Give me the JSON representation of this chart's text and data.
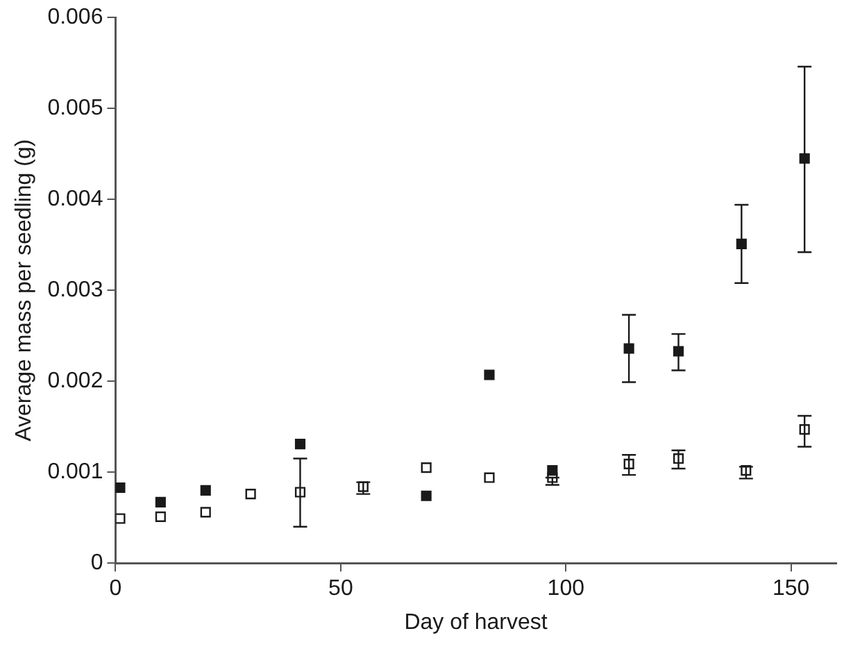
{
  "chart_data": {
    "type": "scatter",
    "xlabel": "Day of harvest",
    "ylabel": "Average mass per seedling (g)",
    "xlim": [
      0,
      160
    ],
    "xticks": [
      0,
      50,
      100,
      150
    ],
    "ylim": [
      0,
      0.006
    ],
    "yticks": [
      0,
      0.001,
      0.002,
      0.003,
      0.004,
      0.005,
      0.006
    ],
    "grid": false,
    "legend": false,
    "marker": "square",
    "series": [
      {
        "color": "#1a1a1a",
        "x": [
          1,
          10,
          20,
          41,
          69,
          83,
          97,
          114,
          125,
          139,
          153
        ],
        "values": [
          0.00083,
          0.00067,
          0.0008,
          0.00131,
          0.00074,
          0.00207,
          0.00102,
          0.00236,
          0.00233,
          0.00351,
          0.00445
        ],
        "errors": [
          null,
          null,
          null,
          null,
          null,
          null,
          null,
          [
            0.00199,
            0.00273
          ],
          [
            0.00212,
            0.00252
          ],
          [
            0.00308,
            0.00394
          ],
          [
            0.00342,
            0.00546
          ]
        ]
      },
      {
        "color": "#ffffff",
        "x": [
          1,
          10,
          20,
          30,
          41,
          55,
          69,
          83,
          97,
          114,
          125,
          140,
          153
        ],
        "values": [
          0.00049,
          0.00051,
          0.00056,
          0.00076,
          0.00078,
          0.00084,
          0.00105,
          0.00094,
          0.00094,
          0.00109,
          0.00115,
          0.00102,
          0.00147
        ],
        "errors": [
          null,
          null,
          null,
          null,
          [
            0.0004,
            0.00115
          ],
          [
            0.00076,
            0.00089
          ],
          null,
          null,
          [
            0.00086,
            0.00094
          ],
          [
            0.00097,
            0.00119
          ],
          [
            0.00104,
            0.00124
          ],
          [
            0.00093,
            0.00106
          ],
          [
            0.00128,
            0.00162
          ]
        ]
      }
    ]
  }
}
